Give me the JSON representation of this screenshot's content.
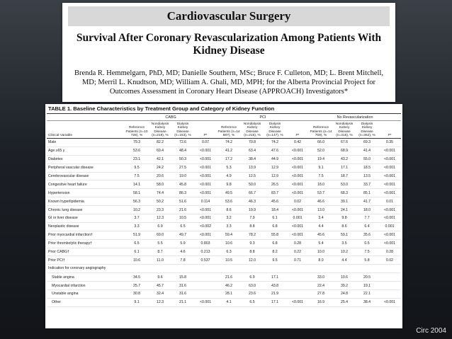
{
  "journal": {
    "section": "Cardiovascular Surgery",
    "title": "Survival After Coronary Revascularization Among Patients With Kidney Disease",
    "authors": "Brenda R. Hemmelgarn, PhD, MD; Danielle Southern, MSc; Bruce F. Culleton, MD; L. Brent Mitchell, MD; Merril L. Knudtson, MD; William A. Ghali, MD, MPH; for the Alberta Provincial Project for Outcomes Assessment in Coronary Heart Disease (APPROACH) Investigators*"
  },
  "table": {
    "caption": "TABLE 1.   Baseline Characteristics by Treatment Group and Category of Kidney Function",
    "groups": [
      "CABG",
      "PCI",
      "No Revascularization"
    ],
    "variable_header": "Clinical Variable",
    "sub_headers": [
      "Reference Patients (n=10 728), %",
      "Nondialysis Kidney Disease (n=219), %",
      "Dialysis Kidney Disease (n=153), %",
      "P*",
      "Reference Patients (n=14 887), %",
      "Nondialysis Kidney Disease (n=216), %",
      "Dialysis Kidney Disease (n=147), %",
      "P*",
      "Reference Patients (n=14 759), %",
      "Nondialysis Kidney Disease (n=315), %",
      "Dialysis Kidney Disease (n=362), %",
      "P*"
    ],
    "rows": [
      {
        "label": "Male",
        "values": [
          "79.3",
          "82.2",
          "72.6",
          "0.07",
          "74.2",
          "70.8",
          "74.2",
          "0.42",
          "66.0",
          "67.6",
          "69.3",
          "0.35"
        ]
      },
      {
        "label": "Age ≥65 y",
        "values": [
          "53.6",
          "69.4",
          "48.4",
          "<0.001",
          "41.2",
          "63.4",
          "47.6",
          "<0.001",
          "52.0",
          "68.9",
          "41.4",
          "<0.001"
        ]
      },
      {
        "label": "Diabetes",
        "values": [
          "23.1",
          "42.1",
          "50.3",
          "<0.001",
          "17.2",
          "38.4",
          "44.9",
          "<0.001",
          "19.4",
          "43.2",
          "55.0",
          "<0.001"
        ]
      },
      {
        "label": "Peripheral vascular disease",
        "values": [
          "9.5",
          "24.2",
          "27.5",
          "<0.001",
          "5.3",
          "13.9",
          "12.9",
          "<0.001",
          "9.1",
          "17.1",
          "18.5",
          "<0.001"
        ]
      },
      {
        "label": "Cerebrovascular disease",
        "values": [
          "7.5",
          "20.6",
          "19.0",
          "<0.001",
          "4.9",
          "12.5",
          "12.9",
          "<0.001",
          "7.5",
          "18.7",
          "13.5",
          "<0.001"
        ]
      },
      {
        "label": "Congestive heart failure",
        "values": [
          "14.1",
          "58.0",
          "45.8",
          "<0.001",
          "9.8",
          "50.0",
          "26.5",
          "<0.001",
          "18.0",
          "53.0",
          "33.7",
          "<0.001"
        ]
      },
      {
        "label": "Hypertension",
        "values": [
          "58.1",
          "74.4",
          "86.3",
          "<0.001",
          "49.5",
          "66.7",
          "83.7",
          "<0.001",
          "53.7",
          "68.3",
          "85.1",
          "<0.001"
        ]
      },
      {
        "label": "Known hyperlipidemia",
        "values": [
          "56.3",
          "50.2",
          "51.6",
          "0.114",
          "53.6",
          "46.3",
          "45.6",
          "0.02",
          "46.6",
          "39.1",
          "41.7",
          "0.01"
        ]
      },
      {
        "label": "Chronic lung disease",
        "values": [
          "10.2",
          "23.3",
          "21.6",
          "<0.001",
          "8.6",
          "19.9",
          "18.4",
          "<0.001",
          "13.0",
          "24.1",
          "18.0",
          "<0.001"
        ]
      },
      {
        "label": "GI or liver disease",
        "values": [
          "3.7",
          "12.3",
          "10.5",
          "<0.001",
          "3.2",
          "7.9",
          "6.1",
          "0.001",
          "3.4",
          "9.8",
          "7.7",
          "<0.001"
        ]
      },
      {
        "label": "Neoplastic disease",
        "values": [
          "3.3",
          "6.9",
          "6.5",
          "<0.002",
          "3.3",
          "8.8",
          "6.8",
          "<0.001",
          "4.4",
          "8.6",
          "6.4",
          "0.001"
        ]
      },
      {
        "label": "Prior myocardial infarction†",
        "values": [
          "51.9",
          "69.0",
          "49.7",
          "<0.001",
          "59.4",
          "78.2",
          "55.8",
          "<0.001",
          "45.6",
          "59.1",
          "35.6",
          "<0.001"
        ]
      },
      {
        "label": "Prior thrombolytic therapy†",
        "values": [
          "6.5",
          "5.5",
          "5.9",
          "0.803",
          "10.6",
          "9.3",
          "6.8",
          "0.28",
          "5.4",
          "3.5",
          "0.5",
          "<0.001"
        ]
      },
      {
        "label": "Prior CABG†",
        "values": [
          "6.1",
          "8.7",
          "4.6",
          "0.213",
          "6.3",
          "8.8",
          "8.2",
          "0.22",
          "10.0",
          "10.2",
          "7.5",
          "0.28"
        ]
      },
      {
        "label": "Prior PCI†",
        "values": [
          "10.6",
          "11.0",
          "7.8",
          "0.537",
          "10.5",
          "12.0",
          "9.5",
          "0.71",
          "8.0",
          "4.4",
          "5.8",
          "0.02"
        ]
      },
      {
        "label": "Indication for coronary angiography",
        "values": [
          "",
          "",
          "",
          "",
          "",
          "",
          "",
          "",
          "",
          "",
          "",
          ""
        ],
        "wrap": true
      },
      {
        "label": "Stable angina",
        "values": [
          "34.5",
          "9.6",
          "15.8",
          "",
          "21.6",
          "6.9",
          "17.1",
          "",
          "33.0",
          "10.6",
          "20.5",
          ""
        ],
        "indent": true
      },
      {
        "label": "Myocardial infarction",
        "values": [
          "25.7",
          "45.7",
          "31.6",
          "",
          "46.2",
          "63.0",
          "43.8",
          "",
          "22.4",
          "39.2",
          "19.1",
          ""
        ],
        "indent": true
      },
      {
        "label": "Unstable angina",
        "values": [
          "30.8",
          "32.4",
          "31.6",
          "",
          "28.1",
          "23.6",
          "21.9",
          "",
          "27.8",
          "24.8",
          "22.1",
          ""
        ],
        "indent": true
      },
      {
        "label": "Other",
        "values": [
          "9.1",
          "12.3",
          "21.1",
          "<0.001",
          "4.1",
          "6.5",
          "17.1",
          "<0.001",
          "16.9",
          "25.4",
          "38.4",
          "<0.001"
        ],
        "indent": true
      }
    ]
  },
  "credit": "Circ 2004"
}
